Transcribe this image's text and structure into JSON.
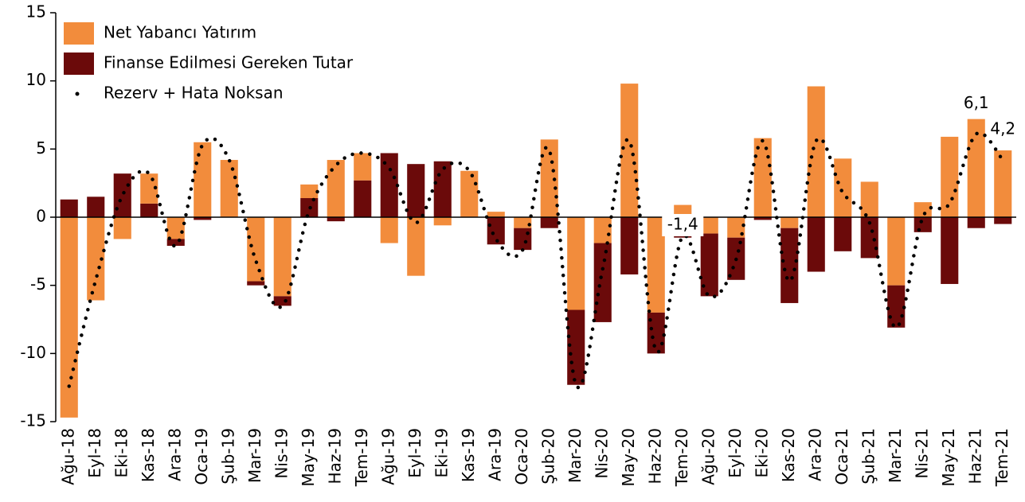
{
  "chart_data": {
    "type": "bar",
    "stacked": true,
    "categories": [
      "Ağu-18",
      "Eyl-18",
      "Eki-18",
      "Kas-18",
      "Ara-18",
      "Oca-19",
      "Şub-19",
      "Mar-19",
      "Nis-19",
      "May-19",
      "Haz-19",
      "Tem-19",
      "Ağu-19",
      "Eyl-19",
      "Eki-19",
      "Kas-19",
      "Ara-19",
      "Oca-20",
      "Şub-20",
      "Mar-20",
      "Nis-20",
      "May-20",
      "Haz-20",
      "Tem-20",
      "Ağu-20",
      "Eyl-20",
      "Eki-20",
      "Kas-20",
      "Ara-20",
      "Oca-21",
      "Şub-21",
      "Mar-21",
      "Nis-21",
      "May-21",
      "Haz-21",
      "Tem-21"
    ],
    "series": [
      {
        "name": "Net Yabancı Yatırım",
        "type": "bar",
        "color": "#f28c3c",
        "values": [
          -14.7,
          -6.1,
          -1.6,
          2.2,
          -1.6,
          5.5,
          4.2,
          -4.7,
          -5.8,
          1.0,
          4.2,
          2.0,
          -1.9,
          -4.3,
          -0.6,
          3.4,
          0.4,
          -0.8,
          5.7,
          -6.8,
          -1.9,
          9.8,
          -7.0,
          0.9,
          -1.2,
          -1.5,
          5.8,
          -0.8,
          9.6,
          4.3,
          2.6,
          -5.0,
          1.1,
          5.9,
          7.2,
          4.9
        ]
      },
      {
        "name": "Finanse Edilmesi Gereken Tutar",
        "type": "bar",
        "color": "#6b0a0a",
        "values": [
          1.3,
          1.5,
          3.2,
          1.0,
          -0.5,
          -0.2,
          0.0,
          -0.3,
          -0.7,
          1.4,
          -0.3,
          2.7,
          4.7,
          3.9,
          4.1,
          0.0,
          -2.0,
          -1.6,
          -0.8,
          -5.5,
          -5.8,
          -4.2,
          -3.0,
          -1.5,
          -4.6,
          -3.1,
          -0.2,
          -5.5,
          -4.0,
          -2.5,
          -3.0,
          -3.1,
          -1.1,
          -4.9,
          -0.8,
          -0.5
        ]
      },
      {
        "name": "Rezerv + Hata Noksan",
        "type": "line",
        "color": "#000000",
        "values": [
          -12.4,
          -4.6,
          1.6,
          3.2,
          -2.1,
          5.3,
          4.2,
          -3.2,
          -6.5,
          0.5,
          3.8,
          4.7,
          3.6,
          -0.4,
          3.5,
          3.4,
          -1.6,
          -2.4,
          4.9,
          -12.3,
          -3.8,
          5.6,
          -9.8,
          -1.4,
          -5.8,
          -3.1,
          5.6,
          -4.7,
          5.6,
          1.8,
          -0.4,
          -8.1,
          0.0,
          1.0,
          6.1,
          4.2
        ],
        "value_labels": [
          null,
          null,
          null,
          null,
          null,
          null,
          null,
          null,
          null,
          null,
          null,
          null,
          null,
          null,
          null,
          null,
          null,
          null,
          null,
          null,
          null,
          null,
          null,
          "-1,4",
          null,
          null,
          null,
          null,
          null,
          null,
          null,
          null,
          null,
          null,
          "6,1",
          "4,2"
        ]
      }
    ],
    "ylim": [
      -15,
      15
    ],
    "yticks": [
      -15,
      -10,
      -5,
      0,
      5,
      10,
      15
    ],
    "legend": "upper left",
    "grid": false
  }
}
